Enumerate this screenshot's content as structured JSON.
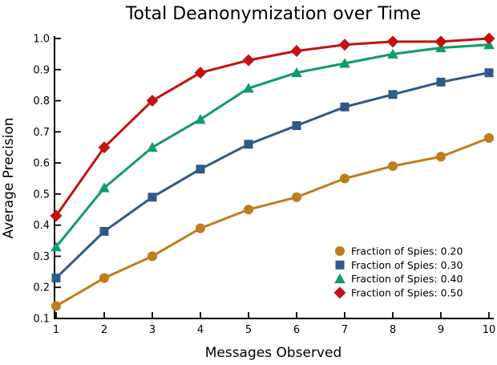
{
  "figure": {
    "title": "Total Deanonymization over Time",
    "xlabel": "Messages Observed",
    "ylabel": "Average Precision"
  },
  "chart_data": {
    "type": "line",
    "title": "Total Deanonymization over Time",
    "xlabel": "Messages Observed",
    "ylabel": "Average Precision",
    "x": [
      1,
      2,
      3,
      4,
      5,
      6,
      7,
      8,
      9,
      10
    ],
    "xlim": [
      1,
      10
    ],
    "ylim": [
      0.1,
      1.0
    ],
    "yticks": [
      0.1,
      0.2,
      0.3,
      0.4,
      0.5,
      0.6,
      0.7,
      0.8,
      0.9,
      1.0
    ],
    "grid": false,
    "legend_position": "lower-right-inside",
    "text_color": "#000000",
    "series": [
      {
        "name": "Fraction of Spies: 0.20",
        "marker": "circle",
        "color": "#BF7D1E",
        "values": [
          0.14,
          0.23,
          0.3,
          0.39,
          0.45,
          0.49,
          0.55,
          0.59,
          0.62,
          0.68
        ]
      },
      {
        "name": "Fraction of Spies: 0.30",
        "marker": "square",
        "color": "#2E5A88",
        "values": [
          0.23,
          0.38,
          0.49,
          0.58,
          0.66,
          0.72,
          0.78,
          0.82,
          0.86,
          0.89
        ]
      },
      {
        "name": "Fraction of Spies: 0.40",
        "marker": "triangle",
        "color": "#0F9C66",
        "values": [
          0.33,
          0.52,
          0.65,
          0.74,
          0.84,
          0.89,
          0.92,
          0.95,
          0.97,
          0.98
        ]
      },
      {
        "name": "Fraction of Spies: 0.50",
        "marker": "diamond",
        "color": "#C41111",
        "values": [
          0.43,
          0.65,
          0.8,
          0.89,
          0.93,
          0.96,
          0.98,
          0.99,
          0.99,
          1.0
        ]
      }
    ]
  }
}
